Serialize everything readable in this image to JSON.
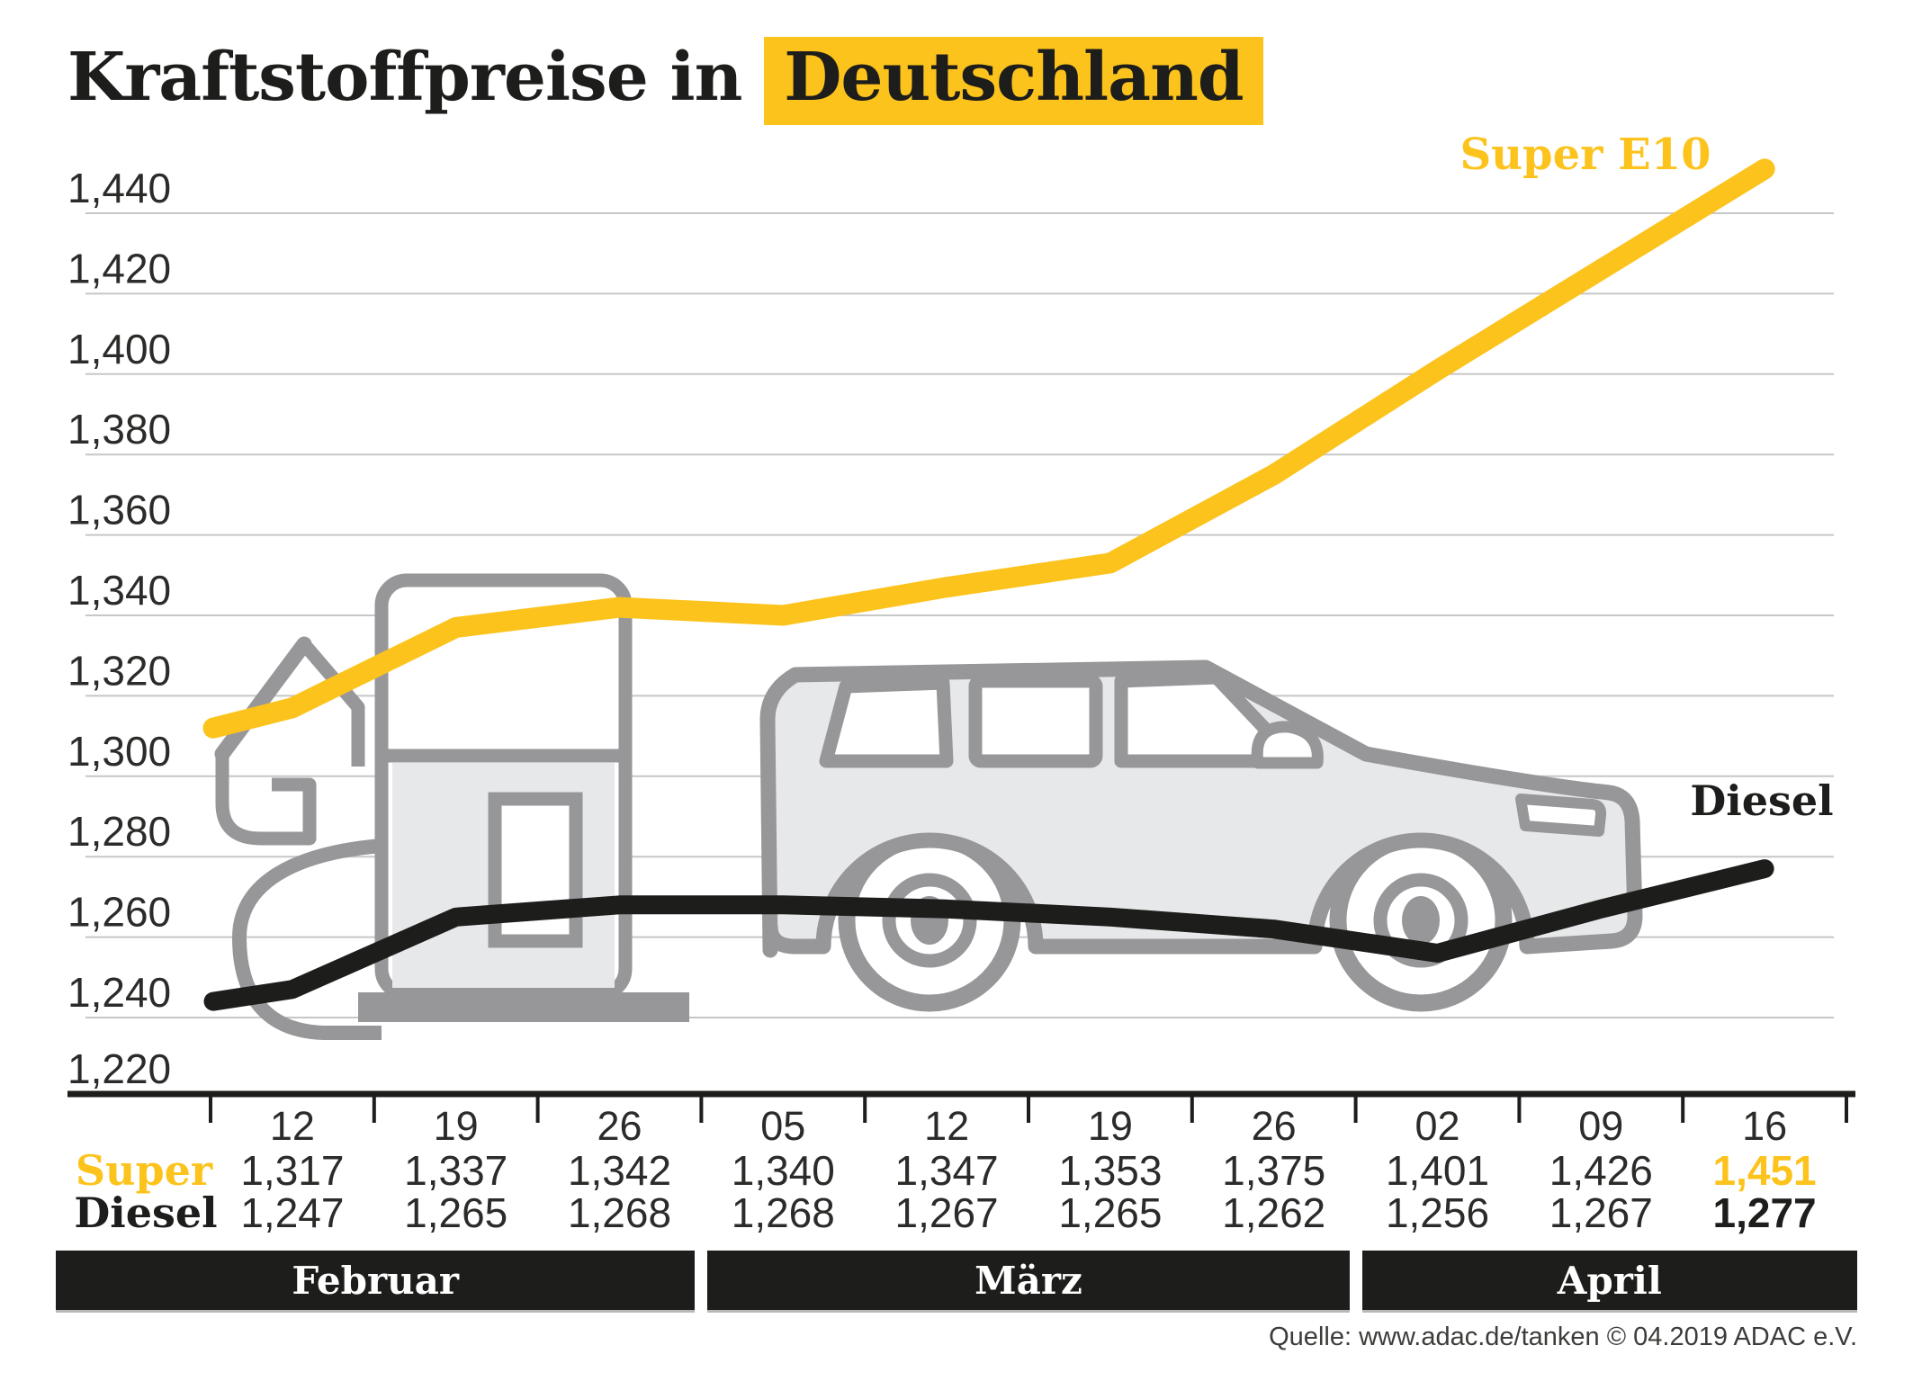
{
  "title": {
    "prefix": "Kraftstoffpreise in",
    "highlight": "Deutschland"
  },
  "colors": {
    "accent_yellow": "#fcc31d",
    "line_black": "#1d1d1b",
    "illustration_gray": "#97979a",
    "illustration_fill": "#e7e8ea",
    "gridline_gray": "#c7c7c7",
    "value_text": "#2b2b29"
  },
  "chart_data": {
    "type": "line",
    "title": "Kraftstoffpreise in Deutschland",
    "categories": [
      "12",
      "19",
      "26",
      "05",
      "12",
      "19",
      "26",
      "02",
      "09",
      "16"
    ],
    "month_groups": [
      {
        "label": "Februar",
        "span": 3
      },
      {
        "label": "März",
        "span": 4
      },
      {
        "label": "April",
        "span": 3
      }
    ],
    "series": [
      {
        "name": "Super",
        "display_name": "Super E10",
        "color": "#fcc31d",
        "values": [
          1.317,
          1.337,
          1.342,
          1.34,
          1.347,
          1.353,
          1.375,
          1.401,
          1.426,
          1.451
        ],
        "lead_in": 1.312
      },
      {
        "name": "Diesel",
        "display_name": "Diesel",
        "color": "#1d1d1b",
        "values": [
          1.247,
          1.265,
          1.268,
          1.268,
          1.267,
          1.265,
          1.262,
          1.256,
          1.267,
          1.277
        ],
        "lead_in": 1.244
      }
    ],
    "y_ticks": [
      1.44,
      1.42,
      1.4,
      1.38,
      1.36,
      1.34,
      1.32,
      1.3,
      1.28,
      1.26,
      1.24,
      1.22
    ],
    "y_tick_labels": [
      "1,440",
      "1,420",
      "1,400",
      "1,380",
      "1,360",
      "1,340",
      "1,320",
      "1,300",
      "1,280",
      "1,260",
      "1,240",
      "1,220"
    ],
    "ylim": [
      1.22,
      1.455
    ],
    "grid": true,
    "legend_position": "on-line-ends"
  },
  "table": {
    "date_row": [
      "12",
      "19",
      "26",
      "05",
      "12",
      "19",
      "26",
      "02",
      "09",
      "16"
    ],
    "rows": [
      {
        "label": "Super",
        "values": [
          "1,317",
          "1,337",
          "1,342",
          "1,340",
          "1,347",
          "1,353",
          "1,375",
          "1,401",
          "1,426",
          "1,451"
        ]
      },
      {
        "label": "Diesel",
        "values": [
          "1,247",
          "1,265",
          "1,268",
          "1,268",
          "1,267",
          "1,265",
          "1,262",
          "1,256",
          "1,267",
          "1,277"
        ]
      }
    ]
  },
  "source": "Quelle: www.adac.de/tanken   © 04.2019   ADAC e.V."
}
